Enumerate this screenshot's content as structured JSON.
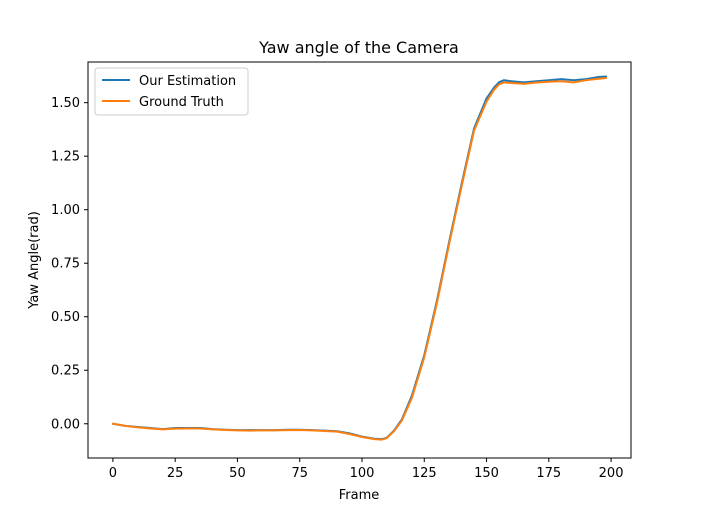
{
  "chart_data": {
    "type": "line",
    "title": "Yaw angle of the Camera",
    "xlabel": "Frame",
    "ylabel": "Yaw Angle(rad)",
    "xlim": [
      -10,
      208
    ],
    "ylim": [
      -0.16,
      1.69
    ],
    "xticks": [
      0,
      25,
      50,
      75,
      100,
      125,
      150,
      175,
      200
    ],
    "yticks": [
      0.0,
      0.25,
      0.5,
      0.75,
      1.0,
      1.25,
      1.5
    ],
    "xtick_labels": [
      "0",
      "25",
      "50",
      "75",
      "100",
      "125",
      "150",
      "175",
      "200"
    ],
    "ytick_labels": [
      "0.00",
      "0.25",
      "0.50",
      "0.75",
      "1.00",
      "1.25",
      "1.50"
    ],
    "grid": false,
    "legend_position": "top-left",
    "series": [
      {
        "name": "Our Estimation",
        "color": "#1f77b4",
        "x": [
          0,
          5,
          10,
          15,
          20,
          25,
          30,
          35,
          40,
          45,
          50,
          55,
          60,
          65,
          70,
          75,
          80,
          85,
          90,
          95,
          100,
          105,
          108,
          110,
          113,
          116,
          120,
          125,
          130,
          135,
          140,
          145,
          150,
          153,
          155,
          157,
          160,
          165,
          170,
          175,
          180,
          185,
          190,
          195,
          198
        ],
        "y": [
          0.0,
          -0.01,
          -0.015,
          -0.02,
          -0.025,
          -0.02,
          -0.02,
          -0.02,
          -0.025,
          -0.028,
          -0.03,
          -0.03,
          -0.03,
          -0.03,
          -0.028,
          -0.028,
          -0.03,
          -0.032,
          -0.035,
          -0.045,
          -0.06,
          -0.07,
          -0.072,
          -0.065,
          -0.03,
          0.02,
          0.13,
          0.32,
          0.57,
          0.85,
          1.12,
          1.38,
          1.52,
          1.57,
          1.595,
          1.605,
          1.6,
          1.595,
          1.6,
          1.605,
          1.61,
          1.605,
          1.61,
          1.62,
          1.622
        ]
      },
      {
        "name": "Ground Truth",
        "color": "#ff7f0e",
        "x": [
          0,
          5,
          10,
          15,
          20,
          25,
          30,
          35,
          40,
          45,
          50,
          55,
          60,
          65,
          70,
          75,
          80,
          85,
          90,
          95,
          100,
          105,
          108,
          110,
          113,
          116,
          120,
          125,
          130,
          135,
          140,
          145,
          150,
          153,
          155,
          157,
          160,
          165,
          170,
          175,
          180,
          185,
          190,
          195,
          198
        ],
        "y": [
          0.0,
          -0.01,
          -0.017,
          -0.022,
          -0.026,
          -0.023,
          -0.022,
          -0.022,
          -0.026,
          -0.029,
          -0.031,
          -0.032,
          -0.031,
          -0.031,
          -0.03,
          -0.029,
          -0.031,
          -0.034,
          -0.037,
          -0.048,
          -0.062,
          -0.072,
          -0.074,
          -0.067,
          -0.033,
          0.015,
          0.12,
          0.31,
          0.56,
          0.84,
          1.11,
          1.37,
          1.505,
          1.56,
          1.585,
          1.595,
          1.592,
          1.588,
          1.594,
          1.598,
          1.6,
          1.595,
          1.605,
          1.612,
          1.615
        ]
      }
    ]
  }
}
